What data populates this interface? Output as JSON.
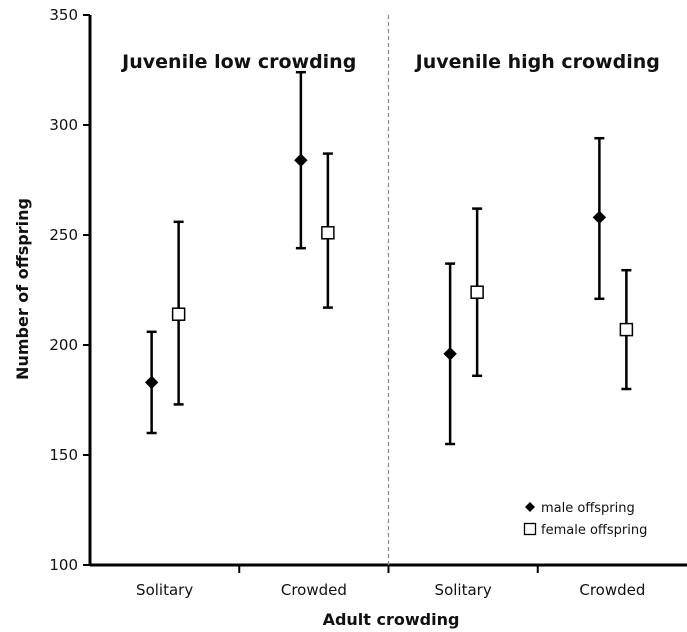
{
  "chart_data": {
    "type": "scatter",
    "title": "",
    "xlabel": "Adult crowding",
    "ylabel": "Number of offspring",
    "ylim": [
      100,
      350
    ],
    "yticks": [
      100,
      150,
      200,
      250,
      300,
      350
    ],
    "grid": false,
    "legend_position": "bottom-right",
    "panels": [
      {
        "title": "Juvenile low crowding",
        "categories": [
          "Solitary",
          "Crowded"
        ]
      },
      {
        "title": "Juvenile high crowding",
        "categories": [
          "Solitary",
          "Crowded"
        ]
      }
    ],
    "series": [
      {
        "name": "male offspring",
        "marker": "diamond",
        "color": "#000000",
        "points": [
          {
            "panel": 0,
            "category": "Solitary",
            "y": 183,
            "low": 160,
            "high": 206
          },
          {
            "panel": 0,
            "category": "Crowded",
            "y": 284,
            "low": 244,
            "high": 324
          },
          {
            "panel": 1,
            "category": "Solitary",
            "y": 196,
            "low": 155,
            "high": 237
          },
          {
            "panel": 1,
            "category": "Crowded",
            "y": 258,
            "low": 221,
            "high": 294
          }
        ]
      },
      {
        "name": "female offspring",
        "marker": "square-open",
        "color": "#000000",
        "points": [
          {
            "panel": 0,
            "category": "Solitary",
            "y": 214,
            "low": 173,
            "high": 256
          },
          {
            "panel": 0,
            "category": "Crowded",
            "y": 251,
            "low": 217,
            "high": 287
          },
          {
            "panel": 1,
            "category": "Solitary",
            "y": 224,
            "low": 186,
            "high": 262
          },
          {
            "panel": 1,
            "category": "Crowded",
            "y": 207,
            "low": 180,
            "high": 234
          }
        ]
      }
    ]
  }
}
